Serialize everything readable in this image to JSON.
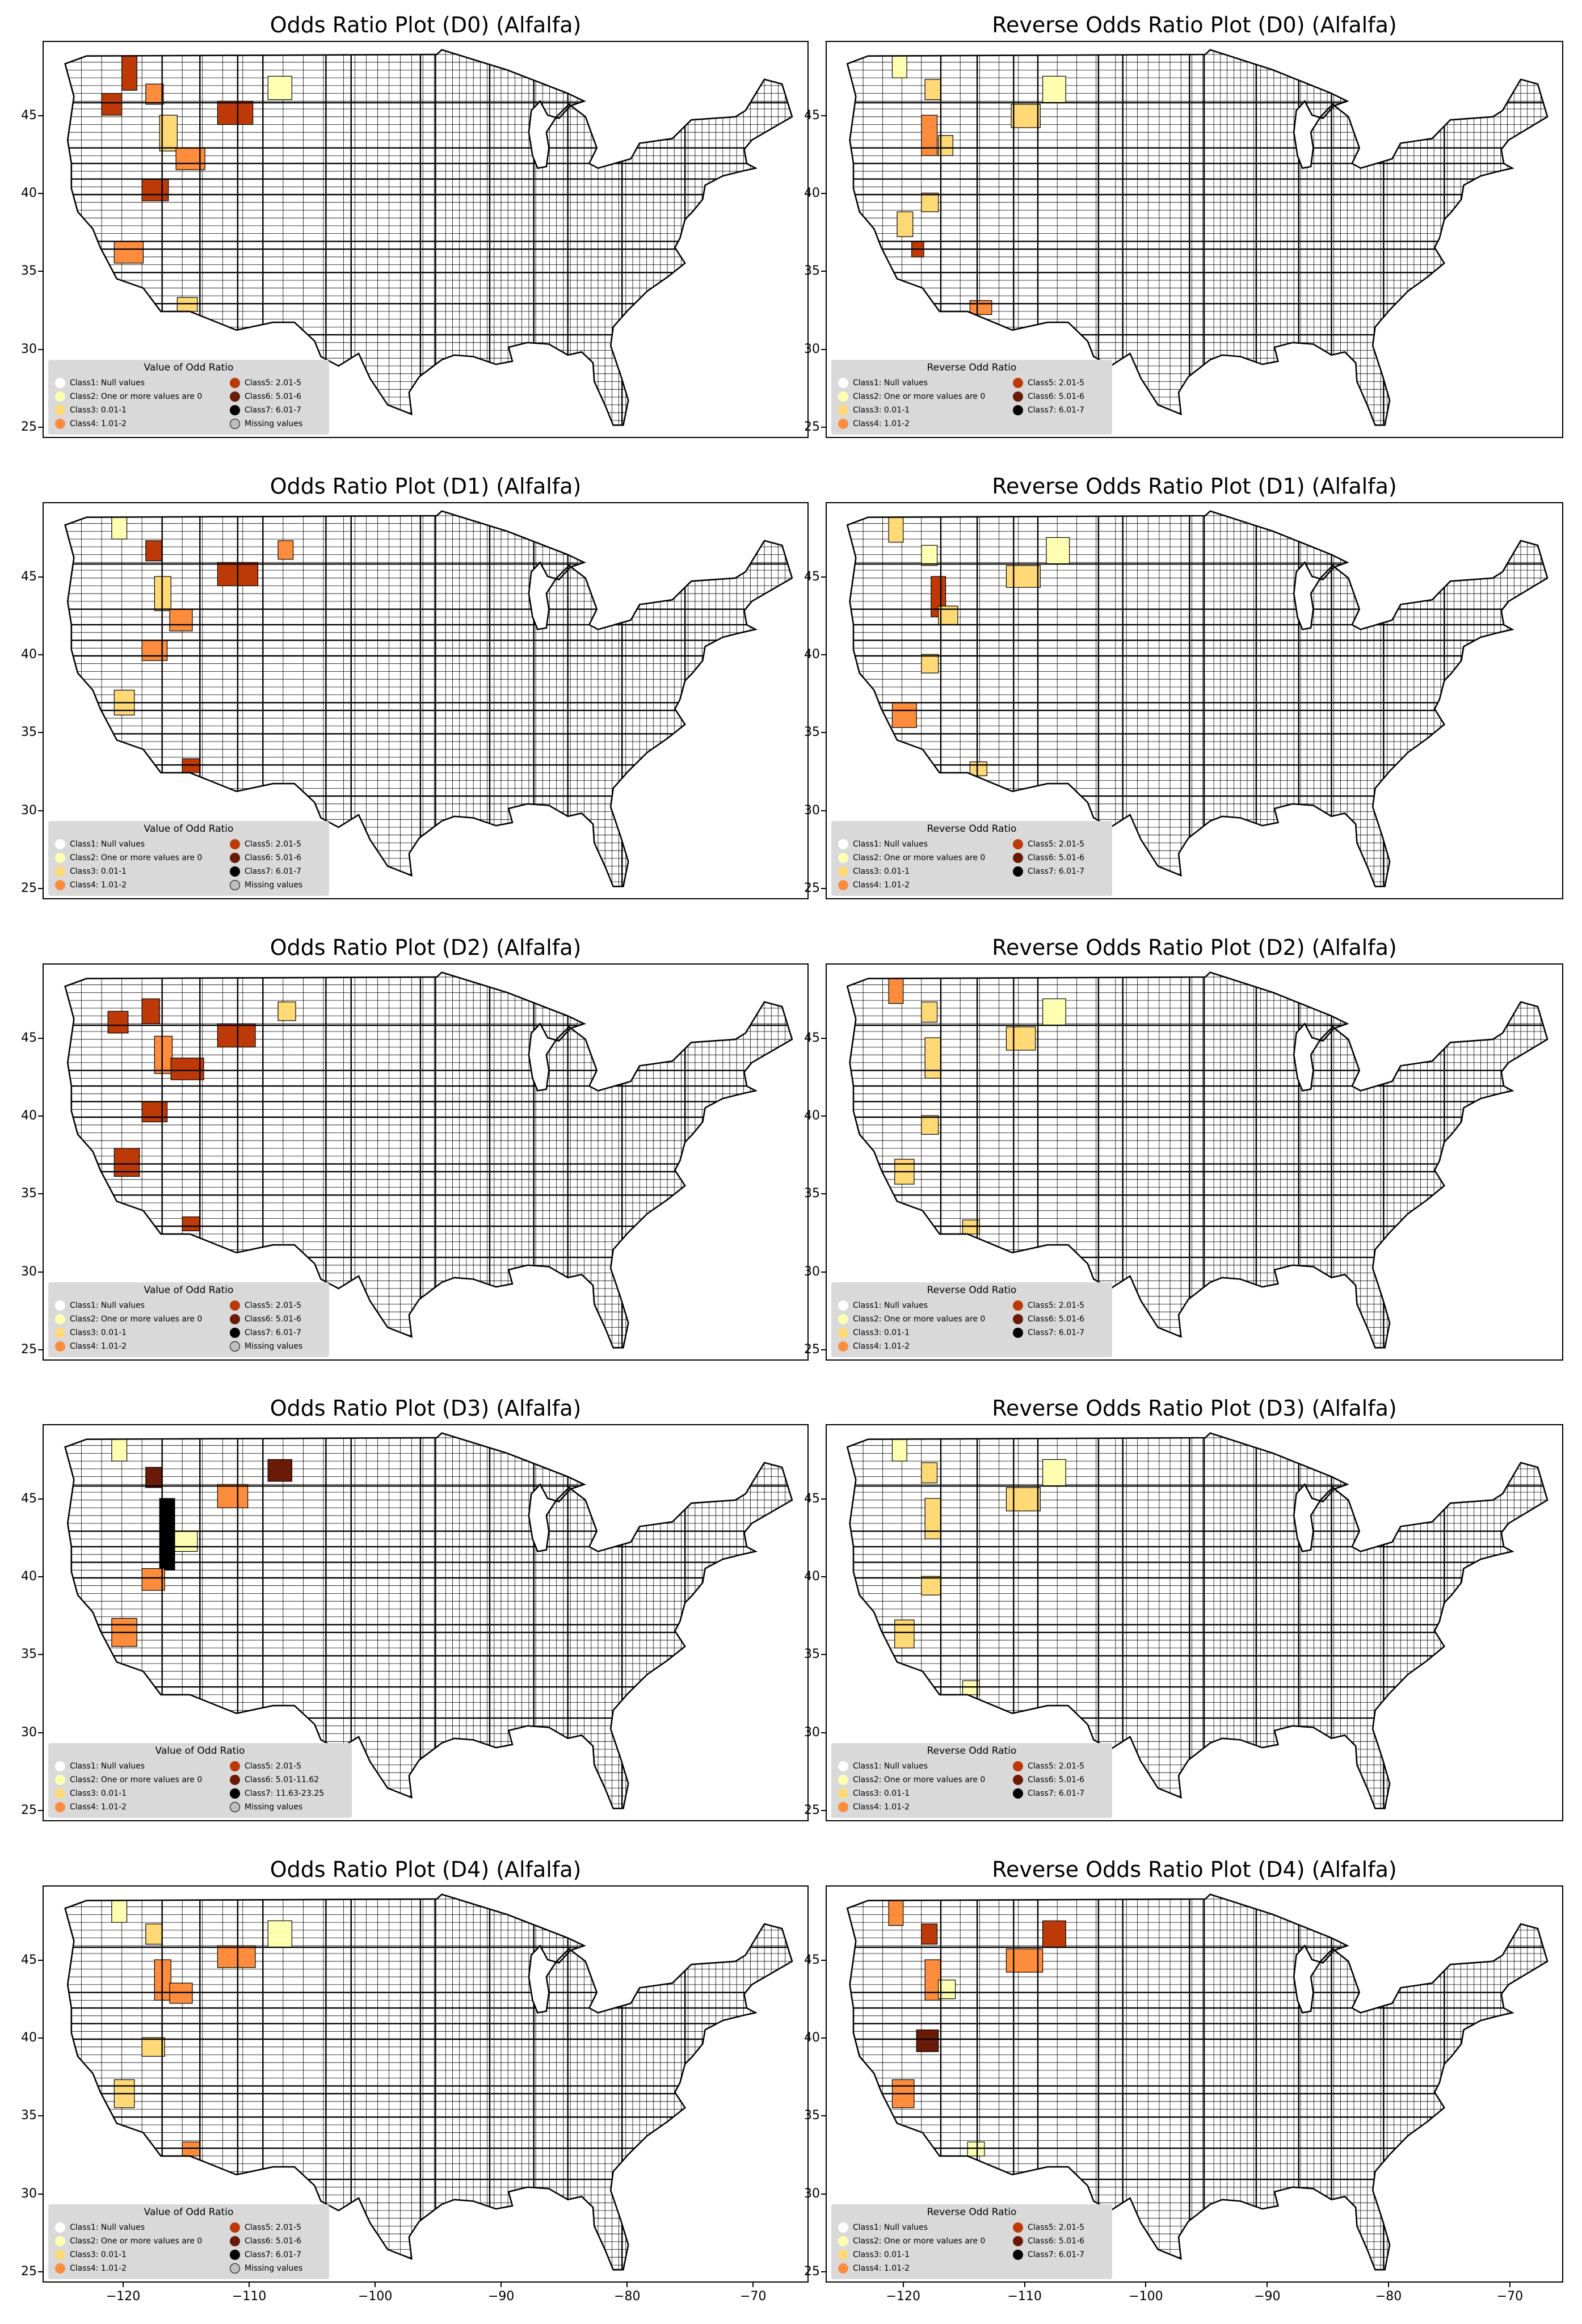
{
  "colors": {
    "class1": "#ffffff",
    "class2": "#ffffb2",
    "class3": "#fed976",
    "class4": "#fd8d3c",
    "class5": "#bd3a08",
    "class6": "#6b1a07",
    "class7": "#000000",
    "missing": "#bfbfbf"
  },
  "x_ticks": [
    "−120",
    "−110",
    "−100",
    "−90",
    "−80",
    "−70"
  ],
  "y_ticks": [
    "25",
    "30",
    "35",
    "40",
    "45"
  ],
  "panels": [
    {
      "title": "Odds Ratio Plot (D0) (Alfalfa)",
      "legend": {
        "title": "Value of Odd Ratio",
        "left": [
          "Class1: Null values",
          "Class2: One or more values are 0",
          "Class3: 0.01-1",
          "Class4: 1.01-2"
        ],
        "right": [
          "Class5: 2.01-5",
          "Class6: 5.01-6",
          "Class7: 6.01-7",
          "Missing values"
        ]
      }
    },
    {
      "title": "Reverse Odds Ratio Plot (D0) (Alfalfa)",
      "legend": {
        "title": "Reverse Odd Ratio",
        "left": [
          "Class1: Null values",
          "Class2: One or more values are 0",
          "Class3: 0.01-1",
          "Class4: 1.01-2"
        ],
        "right": [
          "Class5: 2.01-5",
          "Class6: 5.01-6",
          "Class7: 6.01-7"
        ]
      }
    },
    {
      "title": "Odds Ratio Plot (D1) (Alfalfa)",
      "legend": {
        "title": "Value of Odd Ratio",
        "left": [
          "Class1: Null values",
          "Class2: One or more values are 0",
          "Class3: 0.01-1",
          "Class4: 1.01-2"
        ],
        "right": [
          "Class5: 2.01-5",
          "Class6: 5.01-6",
          "Class7: 6.01-7",
          "Missing values"
        ]
      }
    },
    {
      "title": "Reverse Odds Ratio Plot (D1) (Alfalfa)",
      "legend": {
        "title": "Reverse Odd Ratio",
        "left": [
          "Class1: Null values",
          "Class2: One or more values are 0",
          "Class3: 0.01-1",
          "Class4: 1.01-2"
        ],
        "right": [
          "Class5: 2.01-5",
          "Class6: 5.01-6",
          "Class7: 6.01-7"
        ]
      }
    },
    {
      "title": "Odds Ratio Plot (D2) (Alfalfa)",
      "legend": {
        "title": "Value of Odd Ratio",
        "left": [
          "Class1: Null values",
          "Class2: One or more values are 0",
          "Class3: 0.01-1",
          "Class4: 1.01-2"
        ],
        "right": [
          "Class5: 2.01-5",
          "Class6: 5.01-6",
          "Class7: 6.01-7",
          "Missing values"
        ]
      }
    },
    {
      "title": "Reverse Odds Ratio Plot (D2) (Alfalfa)",
      "legend": {
        "title": "Reverse Odd Ratio",
        "left": [
          "Class1: Null values",
          "Class2: One or more values are 0",
          "Class3: 0.01-1",
          "Class4: 1.01-2"
        ],
        "right": [
          "Class5: 2.01-5",
          "Class6: 5.01-6",
          "Class7: 6.01-7"
        ]
      }
    },
    {
      "title": "Odds Ratio Plot (D3) (Alfalfa)",
      "legend": {
        "title": "Value of Odd Ratio",
        "left": [
          "Class1: Null values",
          "Class2: One or more values are 0",
          "Class3: 0.01-1",
          "Class4: 1.01-2"
        ],
        "right": [
          "Class5: 2.01-5",
          "Class6: 5.01-11.62",
          "Class7: 11.63-23.25",
          "Missing values"
        ]
      }
    },
    {
      "title": "Reverse Odds Ratio Plot (D3) (Alfalfa)",
      "legend": {
        "title": "Reverse Odd Ratio",
        "left": [
          "Class1: Null values",
          "Class2: One or more values are 0",
          "Class3: 0.01-1",
          "Class4: 1.01-2"
        ],
        "right": [
          "Class5: 2.01-5",
          "Class6: 5.01-6",
          "Class7: 6.01-7"
        ]
      }
    },
    {
      "title": "Odds Ratio Plot (D4) (Alfalfa)",
      "legend": {
        "title": "Value of Odd Ratio",
        "left": [
          "Class1: Null values",
          "Class2: One or more values are 0",
          "Class3: 0.01-1",
          "Class4: 1.01-2"
        ],
        "right": [
          "Class5: 2.01-5",
          "Class6: 5.01-6",
          "Class7: 6.01-7",
          "Missing values"
        ]
      }
    },
    {
      "title": "Reverse Odds Ratio Plot (D4) (Alfalfa)",
      "legend": {
        "title": "Reverse Odd Ratio",
        "left": [
          "Class1: Null values",
          "Class2: One or more values are 0",
          "Class3: 0.01-1",
          "Class4: 1.01-2"
        ],
        "right": [
          "Class5: 2.01-5",
          "Class6: 5.01-6",
          "Class7: 6.01-7"
        ]
      }
    }
  ]
}
